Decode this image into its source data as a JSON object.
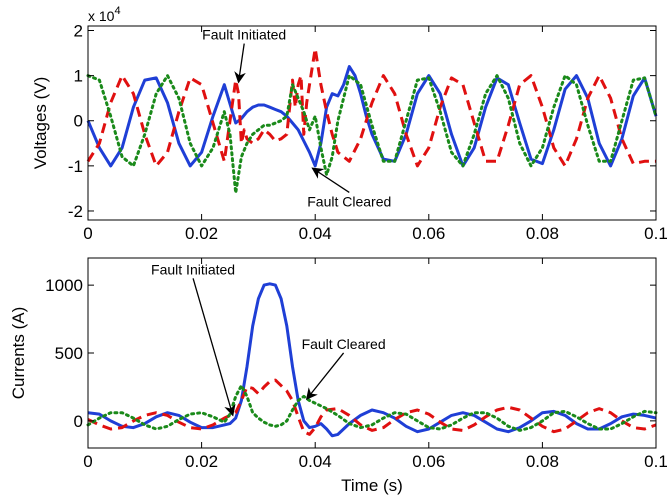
{
  "chart_data": [
    {
      "type": "line",
      "title": "",
      "xlabel": "",
      "ylabel": "Voltages (V)",
      "y_multiplier_label": "x 10",
      "y_multiplier_exp": "4",
      "xlim": [
        0,
        0.1
      ],
      "ylim": [
        -2.2,
        2.1
      ],
      "xticks": [
        0,
        0.02,
        0.04,
        0.06,
        0.08,
        0.1
      ],
      "xtick_labels": [
        "0",
        "0.02",
        "0.04",
        "0.06",
        "0.08",
        "0.1"
      ],
      "yticks": [
        -2,
        -1,
        0,
        1,
        2
      ],
      "ytick_labels": [
        "-2",
        "-1",
        "0",
        "1",
        "2"
      ],
      "grid": false,
      "series": [
        {
          "color": "#1f3fd6",
          "style": "solid",
          "x": [
            0,
            0.002,
            0.004,
            0.006,
            0.008,
            0.01,
            0.012,
            0.014,
            0.016,
            0.018,
            0.02,
            0.022,
            0.024,
            0.026,
            0.027,
            0.028,
            0.029,
            0.03,
            0.031,
            0.032,
            0.033,
            0.034,
            0.035,
            0.036,
            0.037,
            0.038,
            0.039,
            0.04,
            0.041,
            0.042,
            0.043,
            0.044,
            0.045,
            0.046,
            0.047,
            0.048,
            0.049,
            0.05,
            0.052,
            0.054,
            0.056,
            0.058,
            0.06,
            0.062,
            0.064,
            0.066,
            0.068,
            0.07,
            0.072,
            0.074,
            0.076,
            0.078,
            0.08,
            0.082,
            0.084,
            0.086,
            0.088,
            0.09,
            0.092,
            0.094,
            0.096,
            0.098,
            0.1
          ],
          "y": [
            0,
            -0.6,
            -1.0,
            -0.6,
            0.3,
            0.9,
            0.95,
            0.4,
            -0.5,
            -1.0,
            -0.7,
            0.1,
            0.8,
            -0.05,
            0.05,
            0.2,
            0.3,
            0.35,
            0.35,
            0.3,
            0.25,
            0.2,
            0.1,
            -0.05,
            -0.2,
            -0.45,
            -0.7,
            -1.0,
            -0.5,
            0.3,
            0.6,
            0.55,
            0.8,
            1.2,
            1.0,
            0.6,
            0.1,
            -0.3,
            -0.85,
            -0.9,
            -0.3,
            0.6,
            1.0,
            0.6,
            -0.3,
            -1.0,
            -0.6,
            0.3,
            0.95,
            0.8,
            -0.05,
            -0.85,
            -0.95,
            -0.2,
            0.7,
            1.0,
            0.5,
            -0.5,
            -1.0,
            -0.4,
            0.55,
            0.95,
            0.1
          ]
        },
        {
          "color": "#e01010",
          "style": "dashed",
          "x": [
            0,
            0.002,
            0.004,
            0.006,
            0.008,
            0.01,
            0.012,
            0.014,
            0.016,
            0.018,
            0.02,
            0.022,
            0.024,
            0.026,
            0.0265,
            0.027,
            0.0275,
            0.028,
            0.029,
            0.03,
            0.031,
            0.032,
            0.033,
            0.034,
            0.035,
            0.036,
            0.0365,
            0.037,
            0.0375,
            0.038,
            0.0385,
            0.039,
            0.04,
            0.041,
            0.042,
            0.043,
            0.044,
            0.046,
            0.048,
            0.05,
            0.052,
            0.054,
            0.056,
            0.058,
            0.06,
            0.062,
            0.064,
            0.066,
            0.068,
            0.07,
            0.072,
            0.074,
            0.076,
            0.078,
            0.08,
            0.082,
            0.084,
            0.086,
            0.088,
            0.09,
            0.092,
            0.094,
            0.096,
            0.098,
            0.1
          ],
          "y": [
            -0.9,
            -0.5,
            0.4,
            1.0,
            0.6,
            -0.3,
            -1.0,
            -0.7,
            0.2,
            0.95,
            0.8,
            -0.05,
            -0.9,
            0.9,
            0.6,
            -0.5,
            -0.2,
            -0.4,
            -0.5,
            -0.4,
            -0.2,
            -0.3,
            -0.45,
            -0.4,
            -0.3,
            0.9,
            0.3,
            0.8,
            1.0,
            -0.3,
            0.4,
            0.8,
            1.6,
            0.8,
            0.2,
            -0.3,
            -0.7,
            -0.9,
            -0.4,
            0.4,
            1.0,
            0.6,
            -0.3,
            -1.0,
            -0.6,
            0.3,
            0.95,
            0.8,
            -0.05,
            -0.9,
            -0.9,
            -0.1,
            0.8,
            1.0,
            0.3,
            -0.6,
            -1.0,
            -0.4,
            0.5,
            1.0,
            0.5,
            -0.4,
            -0.95,
            -0.9,
            -0.9
          ]
        },
        {
          "color": "#1a8a1a",
          "style": "dotted",
          "x": [
            0,
            0.002,
            0.004,
            0.006,
            0.008,
            0.01,
            0.012,
            0.014,
            0.016,
            0.018,
            0.02,
            0.022,
            0.024,
            0.025,
            0.026,
            0.027,
            0.028,
            0.029,
            0.03,
            0.031,
            0.032,
            0.033,
            0.034,
            0.035,
            0.036,
            0.037,
            0.038,
            0.039,
            0.04,
            0.041,
            0.042,
            0.043,
            0.044,
            0.046,
            0.048,
            0.05,
            0.052,
            0.054,
            0.056,
            0.058,
            0.06,
            0.062,
            0.064,
            0.066,
            0.068,
            0.07,
            0.072,
            0.074,
            0.076,
            0.078,
            0.08,
            0.082,
            0.084,
            0.086,
            0.088,
            0.09,
            0.092,
            0.094,
            0.096,
            0.098,
            0.1
          ],
          "y": [
            1.0,
            0.9,
            0.1,
            -0.8,
            -1.0,
            -0.3,
            0.6,
            1.0,
            0.5,
            -0.5,
            -1.0,
            -0.6,
            0.2,
            -0.3,
            -1.6,
            -0.8,
            -0.5,
            -0.3,
            -0.2,
            -0.1,
            -0.1,
            -0.05,
            0.0,
            0.1,
            0.8,
            0.5,
            0.2,
            -0.2,
            0.1,
            -0.6,
            -1.2,
            -0.8,
            0.0,
            1.0,
            0.8,
            -0.1,
            -0.9,
            -0.9,
            0.0,
            0.9,
            0.95,
            0.2,
            -0.7,
            -1.0,
            -0.3,
            0.6,
            1.0,
            0.5,
            -0.5,
            -1.0,
            -0.6,
            0.3,
            1.0,
            0.8,
            -0.1,
            -0.9,
            -0.9,
            0.0,
            0.9,
            0.95,
            0.1
          ]
        }
      ],
      "annotations": [
        {
          "text": "Fault Initiated",
          "x": 0.0275,
          "y": 1.8,
          "arrow_to": [
            0.0265,
            0.85
          ]
        },
        {
          "text": "Fault Cleared",
          "x": 0.046,
          "y": -1.9,
          "arrow_to": [
            0.0395,
            -1.05
          ]
        }
      ]
    },
    {
      "type": "line",
      "title": "",
      "xlabel": "Time (s)",
      "ylabel": "Currents (A)",
      "xlim": [
        0,
        0.1
      ],
      "ylim": [
        -200,
        1200
      ],
      "xticks": [
        0,
        0.02,
        0.04,
        0.06,
        0.08,
        0.1
      ],
      "xtick_labels": [
        "0",
        "0.02",
        "0.04",
        "0.06",
        "0.08",
        "0.1"
      ],
      "yticks": [
        0,
        500,
        1000
      ],
      "ytick_labels": [
        "0",
        "500",
        "1000"
      ],
      "grid": false,
      "series": [
        {
          "color": "#1f3fd6",
          "style": "solid",
          "x": [
            0,
            0.002,
            0.004,
            0.006,
            0.008,
            0.01,
            0.012,
            0.014,
            0.016,
            0.018,
            0.02,
            0.022,
            0.024,
            0.025,
            0.026,
            0.027,
            0.028,
            0.029,
            0.03,
            0.031,
            0.032,
            0.033,
            0.034,
            0.035,
            0.036,
            0.037,
            0.038,
            0.039,
            0.04,
            0.041,
            0.042,
            0.043,
            0.044,
            0.045,
            0.046,
            0.048,
            0.05,
            0.052,
            0.054,
            0.056,
            0.058,
            0.06,
            0.062,
            0.064,
            0.066,
            0.068,
            0.07,
            0.072,
            0.074,
            0.076,
            0.078,
            0.08,
            0.082,
            0.084,
            0.086,
            0.088,
            0.09,
            0.092,
            0.094,
            0.096,
            0.098,
            0.1
          ],
          "y": [
            60,
            50,
            0,
            -40,
            -50,
            -20,
            30,
            60,
            40,
            -10,
            -50,
            -50,
            -30,
            -20,
            20,
            150,
            400,
            700,
            900,
            1000,
            1010,
            1000,
            900,
            700,
            400,
            150,
            0,
            -50,
            -40,
            -20,
            -60,
            -110,
            -100,
            -60,
            -20,
            40,
            80,
            60,
            20,
            -40,
            -80,
            -60,
            -10,
            40,
            60,
            40,
            -10,
            -60,
            -80,
            -50,
            0,
            60,
            70,
            40,
            -20,
            -60,
            -60,
            -20,
            30,
            50,
            40,
            20
          ]
        },
        {
          "color": "#e01010",
          "style": "dashed",
          "x": [
            0,
            0.002,
            0.004,
            0.006,
            0.008,
            0.01,
            0.012,
            0.014,
            0.016,
            0.018,
            0.02,
            0.022,
            0.024,
            0.025,
            0.026,
            0.027,
            0.028,
            0.029,
            0.03,
            0.031,
            0.032,
            0.033,
            0.034,
            0.035,
            0.036,
            0.037,
            0.038,
            0.039,
            0.04,
            0.041,
            0.042,
            0.044,
            0.046,
            0.048,
            0.05,
            0.052,
            0.054,
            0.056,
            0.058,
            0.06,
            0.062,
            0.064,
            0.066,
            0.068,
            0.07,
            0.072,
            0.074,
            0.076,
            0.078,
            0.08,
            0.082,
            0.084,
            0.086,
            0.088,
            0.09,
            0.092,
            0.094,
            0.096,
            0.098,
            0.1
          ],
          "y": [
            10,
            -30,
            -60,
            -50,
            0,
            40,
            60,
            40,
            -10,
            -50,
            -60,
            -30,
            20,
            40,
            60,
            150,
            250,
            240,
            200,
            250,
            290,
            300,
            260,
            220,
            150,
            30,
            -80,
            -100,
            -50,
            30,
            80,
            90,
            40,
            -30,
            -70,
            -50,
            10,
            60,
            80,
            50,
            -10,
            -60,
            -70,
            -30,
            30,
            80,
            100,
            80,
            20,
            -40,
            -80,
            -60,
            0,
            60,
            90,
            60,
            0,
            -50,
            -60,
            -30
          ]
        },
        {
          "color": "#1a8a1a",
          "style": "dotted",
          "x": [
            0,
            0.002,
            0.004,
            0.006,
            0.008,
            0.01,
            0.012,
            0.014,
            0.016,
            0.018,
            0.02,
            0.022,
            0.024,
            0.025,
            0.026,
            0.027,
            0.028,
            0.029,
            0.03,
            0.031,
            0.032,
            0.033,
            0.034,
            0.035,
            0.036,
            0.037,
            0.038,
            0.039,
            0.04,
            0.042,
            0.044,
            0.046,
            0.048,
            0.05,
            0.052,
            0.054,
            0.056,
            0.058,
            0.06,
            0.062,
            0.064,
            0.066,
            0.068,
            0.07,
            0.072,
            0.074,
            0.076,
            0.078,
            0.08,
            0.082,
            0.084,
            0.086,
            0.088,
            0.09,
            0.092,
            0.094,
            0.096,
            0.098,
            0.1
          ],
          "y": [
            -30,
            20,
            60,
            60,
            20,
            -30,
            -60,
            -40,
            10,
            50,
            60,
            30,
            -10,
            50,
            180,
            260,
            180,
            60,
            20,
            -10,
            -30,
            -40,
            -30,
            0,
            80,
            150,
            180,
            150,
            130,
            90,
            40,
            -20,
            -50,
            -30,
            20,
            60,
            50,
            0,
            -50,
            -60,
            -30,
            20,
            60,
            60,
            20,
            -40,
            -70,
            -50,
            0,
            60,
            70,
            30,
            -20,
            -60,
            -60,
            -20,
            30,
            70,
            60
          ]
        }
      ],
      "annotations": [
        {
          "text": "Fault Initiated",
          "x": 0.0185,
          "y": 1080,
          "arrow_to": [
            0.0255,
            40
          ]
        },
        {
          "text": "Fault Cleared",
          "x": 0.045,
          "y": 530,
          "arrow_to": [
            0.0385,
            160
          ]
        }
      ]
    }
  ]
}
